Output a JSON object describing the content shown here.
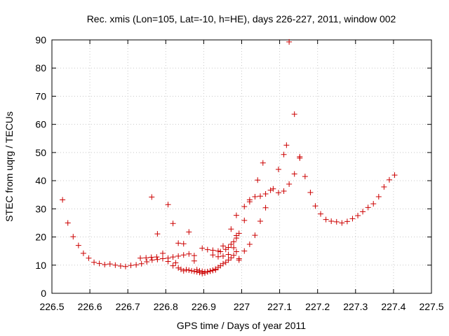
{
  "chart_data": {
    "type": "scatter",
    "title": "Rec. xmis (Lon=105, Lat=-10, h=HE), days 226-227, 2011, window 002",
    "xlabel": "GPS time / Days of year 2011",
    "ylabel": "STEC from uqrg / TECUs",
    "xlim": [
      226.5,
      227.5
    ],
    "ylim": [
      0,
      90
    ],
    "x_ticks": [
      "226.5",
      "226.6",
      "226.7",
      "226.8",
      "226.9",
      "227",
      "227.1",
      "227.2",
      "227.3",
      "227.4",
      "227.5"
    ],
    "x_tick_values": [
      226.5,
      226.6,
      226.7,
      226.8,
      226.9,
      227.0,
      227.1,
      227.2,
      227.3,
      227.4,
      227.5
    ],
    "y_ticks": [
      "0",
      "10",
      "20",
      "30",
      "40",
      "50",
      "60",
      "70",
      "80",
      "90"
    ],
    "y_tick_values": [
      0,
      10,
      20,
      30,
      40,
      50,
      60,
      70,
      80,
      90
    ],
    "grid": true,
    "marker": "+",
    "color": "#cc0000",
    "series": [
      {
        "points": [
          [
            226.528,
            33.2
          ],
          [
            226.542,
            25.0
          ],
          [
            226.556,
            20.1
          ],
          [
            226.57,
            17.0
          ],
          [
            226.583,
            14.2
          ],
          [
            226.597,
            12.5
          ],
          [
            226.611,
            11.0
          ],
          [
            226.625,
            10.6
          ],
          [
            226.639,
            10.2
          ],
          [
            226.653,
            10.4
          ],
          [
            226.667,
            10.0
          ],
          [
            226.681,
            9.7
          ],
          [
            226.694,
            9.5
          ],
          [
            226.708,
            9.9
          ],
          [
            226.722,
            10.1
          ],
          [
            226.736,
            10.5
          ],
          [
            226.75,
            11.2
          ],
          [
            226.764,
            11.8
          ],
          [
            226.778,
            12.0
          ],
          [
            226.792,
            12.3
          ],
          [
            226.806,
            12.5
          ],
          [
            226.819,
            12.9
          ],
          [
            226.833,
            13.2
          ],
          [
            226.847,
            13.6
          ],
          [
            226.861,
            14.0
          ],
          [
            226.875,
            13.4
          ],
          [
            226.733,
            12.5
          ],
          [
            226.748,
            12.6
          ],
          [
            226.762,
            12.8
          ],
          [
            226.776,
            12.9
          ],
          [
            226.763,
            34.2
          ],
          [
            226.778,
            21.1
          ],
          [
            226.792,
            14.2
          ],
          [
            226.806,
            31.5
          ],
          [
            226.819,
            24.8
          ],
          [
            226.833,
            17.8
          ],
          [
            226.847,
            17.6
          ],
          [
            226.861,
            21.8
          ],
          [
            226.806,
            11.3
          ],
          [
            226.819,
            9.8
          ],
          [
            226.826,
            10.8
          ],
          [
            226.833,
            9.0
          ],
          [
            226.84,
            8.5
          ],
          [
            226.847,
            8.0
          ],
          [
            226.854,
            8.4
          ],
          [
            226.861,
            8.2
          ],
          [
            226.868,
            8.0
          ],
          [
            226.875,
            7.8
          ],
          [
            226.882,
            7.6
          ],
          [
            226.889,
            7.4
          ],
          [
            226.896,
            7.0
          ],
          [
            226.903,
            7.2
          ],
          [
            226.91,
            7.6
          ],
          [
            226.917,
            7.9
          ],
          [
            226.924,
            8.2
          ],
          [
            226.931,
            8.6
          ],
          [
            226.938,
            9.2
          ],
          [
            226.944,
            9.8
          ],
          [
            226.951,
            10.5
          ],
          [
            226.958,
            11.0
          ],
          [
            226.965,
            11.8
          ],
          [
            226.972,
            12.6
          ],
          [
            226.979,
            13.5
          ],
          [
            226.986,
            14.8
          ],
          [
            226.875,
            11.5
          ],
          [
            226.882,
            8.4
          ],
          [
            226.889,
            8.0
          ],
          [
            226.896,
            7.8
          ],
          [
            226.903,
            7.6
          ],
          [
            226.91,
            7.7
          ],
          [
            226.917,
            7.9
          ],
          [
            226.924,
            8.1
          ],
          [
            226.931,
            8.3
          ],
          [
            226.896,
            16.0
          ],
          [
            226.91,
            15.5
          ],
          [
            226.924,
            15.3
          ],
          [
            226.938,
            15.0
          ],
          [
            226.944,
            14.8
          ],
          [
            226.951,
            16.8
          ],
          [
            226.958,
            15.6
          ],
          [
            226.965,
            16.3
          ],
          [
            226.972,
            17.4
          ],
          [
            226.979,
            18.3
          ],
          [
            226.986,
            19.6
          ],
          [
            226.924,
            13.6
          ],
          [
            226.938,
            13.0
          ],
          [
            226.951,
            13.2
          ],
          [
            226.965,
            13.8
          ],
          [
            226.979,
            16.2
          ],
          [
            226.993,
            11.8
          ],
          [
            226.972,
            22.8
          ],
          [
            226.986,
            20.5
          ],
          [
            226.993,
            21.3
          ],
          [
            226.986,
            27.7
          ],
          [
            226.993,
            12.3
          ],
          [
            227.007,
            15.0
          ],
          [
            227.021,
            17.4
          ],
          [
            227.035,
            20.6
          ],
          [
            227.049,
            25.6
          ],
          [
            227.063,
            30.4
          ],
          [
            227.007,
            25.9
          ],
          [
            227.007,
            30.8
          ],
          [
            227.021,
            32.5
          ],
          [
            227.021,
            33.2
          ],
          [
            227.035,
            34.3
          ],
          [
            227.042,
            40.2
          ],
          [
            227.049,
            34.5
          ],
          [
            227.056,
            46.3
          ],
          [
            227.063,
            35.3
          ],
          [
            227.076,
            36.6
          ],
          [
            227.083,
            37.1
          ],
          [
            227.097,
            35.7
          ],
          [
            227.097,
            44.0
          ],
          [
            227.111,
            36.3
          ],
          [
            227.111,
            49.3
          ],
          [
            227.118,
            52.6
          ],
          [
            227.125,
            89.3
          ],
          [
            227.125,
            38.8
          ],
          [
            227.139,
            63.6
          ],
          [
            227.139,
            42.4
          ],
          [
            227.153,
            48.0
          ],
          [
            227.153,
            48.5
          ],
          [
            227.167,
            41.5
          ],
          [
            227.181,
            35.8
          ],
          [
            227.194,
            31.0
          ],
          [
            227.208,
            28.2
          ],
          [
            227.222,
            26.2
          ],
          [
            227.236,
            25.6
          ],
          [
            227.25,
            25.4
          ],
          [
            227.264,
            25.0
          ],
          [
            227.278,
            25.5
          ],
          [
            227.292,
            26.5
          ],
          [
            227.306,
            27.6
          ],
          [
            227.319,
            29.0
          ],
          [
            227.333,
            30.5
          ],
          [
            227.347,
            31.8
          ],
          [
            227.361,
            34.3
          ],
          [
            227.375,
            37.8
          ],
          [
            227.389,
            40.3
          ],
          [
            227.403,
            42.0
          ]
        ]
      }
    ]
  }
}
